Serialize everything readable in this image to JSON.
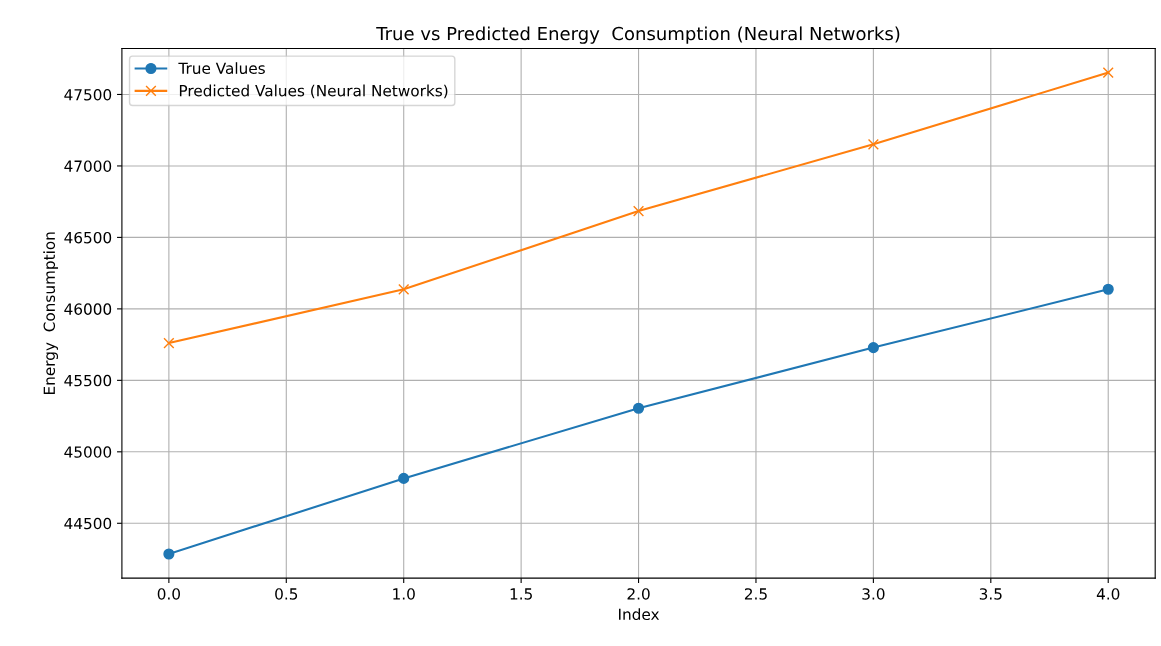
{
  "chart_data": {
    "type": "line",
    "title": "True vs Predicted Energy  Consumption (Neural Networks)",
    "xlabel": "Index",
    "ylabel": "Energy  Consumption",
    "x": [
      0,
      1,
      2,
      3,
      4
    ],
    "series": [
      {
        "name": "True Values",
        "color": "#1f77b4",
        "marker": "circle",
        "values": [
          44285,
          44814,
          45305,
          45729,
          46137
        ]
      },
      {
        "name": "Predicted Values (Neural Networks)",
        "color": "#ff7f0e",
        "marker": "cross",
        "values": [
          45761,
          46137,
          46684,
          47151,
          47653
        ]
      }
    ],
    "xlim": [
      -0.2,
      4.2
    ],
    "xticks": [
      {
        "value": 0,
        "label": "0.0"
      },
      {
        "value": 0.5,
        "label": "0.5"
      },
      {
        "value": 1,
        "label": "1.0"
      },
      {
        "value": 1.5,
        "label": "1.5"
      },
      {
        "value": 2,
        "label": "2.0"
      },
      {
        "value": 2.5,
        "label": "2.5"
      },
      {
        "value": 3,
        "label": "3.0"
      },
      {
        "value": 3.5,
        "label": "3.5"
      },
      {
        "value": 4,
        "label": "4.0"
      }
    ],
    "ylim": [
      44116,
      47822
    ],
    "yticks": [
      44500,
      45000,
      45500,
      46000,
      46500,
      47000,
      47500
    ],
    "grid": true,
    "legend": "top left",
    "line_style": "solid"
  }
}
